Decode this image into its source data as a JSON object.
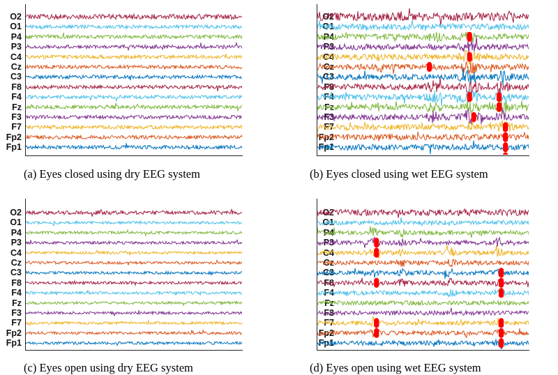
{
  "channels": [
    "O2",
    "O1",
    "P4",
    "P3",
    "C4",
    "Cz",
    "C3",
    "F8",
    "F4",
    "Fz",
    "F3",
    "F7",
    "Fp2",
    "Fp1"
  ],
  "colors": {
    "O2": "#a31f42",
    "O1": "#4bbfe8",
    "P4": "#7bb539",
    "P3": "#7e2f8e",
    "C4": "#edb120",
    "Cz": "#d95319",
    "C3": "#0072bd",
    "F8": "#a31f42",
    "F4": "#4bbfe8",
    "Fz": "#7bb539",
    "F3": "#7e2f8e",
    "F7": "#edb120",
    "Fp2": "#d95319",
    "Fp1": "#0072bd",
    "artifact_marker": "#ff0000"
  },
  "panels": [
    {
      "id": "a",
      "caption": "(a)  Eyes  closed  using  dry  EEG  system",
      "condition": "eyes-closed",
      "system": "dry",
      "has_artifact_markers": false
    },
    {
      "id": "b",
      "caption": "(b)  Eyes  closed  using  wet  EEG  system",
      "condition": "eyes-closed",
      "system": "wet",
      "has_artifact_markers": true
    },
    {
      "id": "c",
      "caption": "(c)  Eyes  open  using  dry  EEG  system",
      "condition": "eyes-open",
      "system": "dry",
      "has_artifact_markers": false
    },
    {
      "id": "d",
      "caption": "(d)  Eyes  open  using  wet  EEG  system",
      "condition": "eyes-open",
      "system": "wet",
      "has_artifact_markers": true
    }
  ]
}
